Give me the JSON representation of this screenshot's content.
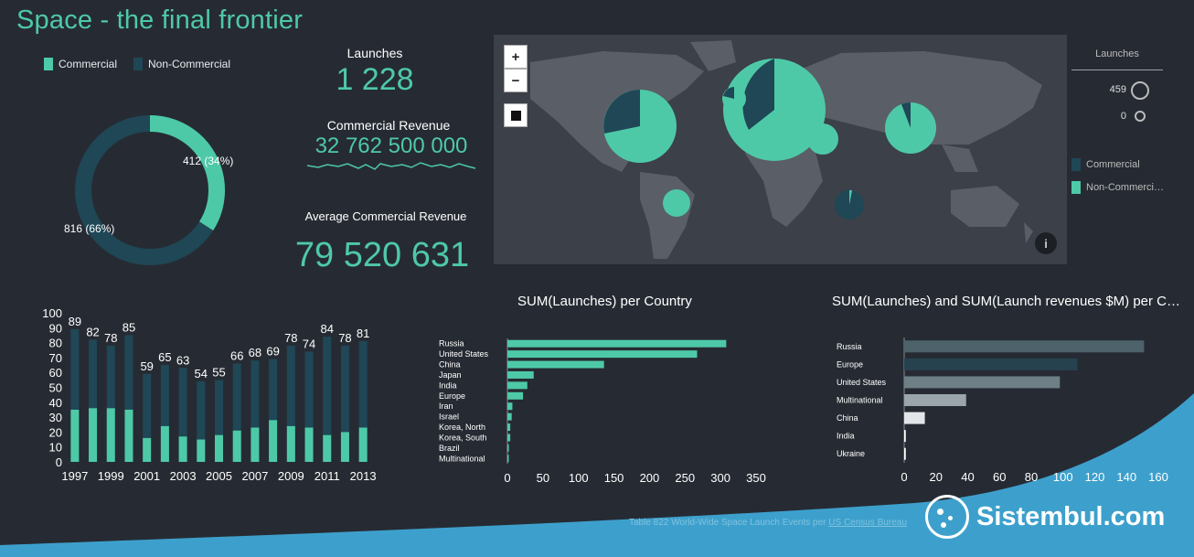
{
  "title": "Space - the final frontier",
  "colors": {
    "commercial": "#4ec9a7",
    "non_commercial": "#1f4756",
    "bg": "#262b33"
  },
  "legend": {
    "commercial": "Commercial",
    "non_commercial": "Non-Commercial"
  },
  "donut": {
    "commercial_label": "412 (34%)",
    "non_commercial_label": "816 (66%)",
    "commercial_fraction": 0.34
  },
  "kpis": {
    "launches_label": "Launches",
    "launches_value": "1 228",
    "revenue_label": "Commercial Revenue",
    "revenue_value": "32 762 500 000",
    "avg_label": "Average Commercial Revenue",
    "avg_value": "79 520 631"
  },
  "map": {
    "zoom_in": "+",
    "zoom_out": "−",
    "size_legend_title": "Launches",
    "size_max": "459",
    "size_min": "0",
    "color_legend_commercial": "Commercial",
    "color_legend_non_commercial": "Non-Commerci…"
  },
  "chart_data": [
    {
      "type": "bar",
      "stacked": true,
      "categories": [
        "1997",
        "1998",
        "1999",
        "2000",
        "2001",
        "2002",
        "2003",
        "2004",
        "2005",
        "2006",
        "2007",
        "2008",
        "2009",
        "2010",
        "2011",
        "2012",
        "2013"
      ],
      "x_tick_labels": [
        "1997",
        "1999",
        "2001",
        "2003",
        "2005",
        "2007",
        "2009",
        "2011",
        "2013"
      ],
      "totals": [
        89,
        82,
        78,
        85,
        59,
        65,
        63,
        54,
        55,
        66,
        68,
        69,
        78,
        74,
        84,
        78,
        81
      ],
      "series": [
        {
          "values": [
            35,
            36,
            36,
            35,
            16,
            24,
            17,
            15,
            18,
            21,
            23,
            28,
            24,
            23,
            18,
            20,
            23
          ]
        }
      ],
      "ylim": [
        0,
        100
      ],
      "yticks": [
        0,
        10,
        20,
        30,
        40,
        50,
        60,
        70,
        80,
        90,
        100
      ],
      "grid": false
    },
    {
      "type": "bar",
      "orientation": "horizontal",
      "title": "SUM(Launches) per Country",
      "categories": [
        "Russia",
        "United States",
        "China",
        "Japan",
        "India",
        "Europe",
        "Iran",
        "Israel",
        "Korea, North",
        "Korea, South",
        "Brazil",
        "Multinational"
      ],
      "values": [
        308,
        267,
        136,
        37,
        28,
        22,
        7,
        6,
        4,
        4,
        2,
        1
      ],
      "xlim": [
        0,
        350
      ],
      "xticks": [
        0,
        50,
        100,
        150,
        200,
        250,
        300,
        350
      ]
    },
    {
      "type": "bar",
      "orientation": "horizontal",
      "title": "SUM(Launches) and SUM(Launch revenues $M) per C…",
      "categories": [
        "Russia",
        "Europe",
        "United States",
        "Multinational",
        "China",
        "India",
        "Ukraine"
      ],
      "values": [
        151,
        109,
        98,
        39,
        13,
        1,
        1
      ],
      "colors": [
        "#4d626b",
        "#27424f",
        "#6e7f86",
        "#9aa6ab",
        "#e3e6e8",
        "#ffffff",
        "#ffffff"
      ],
      "xlim": [
        0,
        160
      ],
      "xticks": [
        0,
        20,
        40,
        60,
        80,
        100,
        120,
        140,
        160
      ]
    }
  ],
  "footer": {
    "source_text": "Table 822 World-Wide Space Launch Events per",
    "source_link": "US Census Bureau",
    "brand": "Sistembul.com"
  }
}
